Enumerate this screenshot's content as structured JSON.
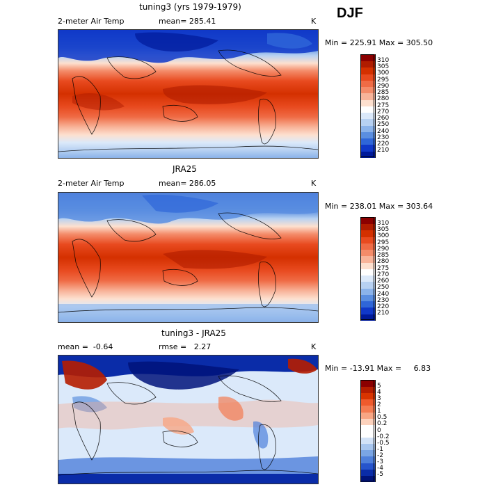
{
  "season": "DJF",
  "panels": [
    {
      "title": "tuning3 (yrs 1979-1979)",
      "variable": "2-meter Air Temp",
      "mean_label": "mean=",
      "mean_value": "285.41",
      "units": "K",
      "range_text": "Min = 225.91 Max = 305.50",
      "colorbar_labels": [
        "310",
        "305",
        "300",
        "295",
        "290",
        "285",
        "280",
        "275",
        "270",
        "260",
        "250",
        "240",
        "230",
        "220",
        "210"
      ]
    },
    {
      "title": "JRA25",
      "variable": "2-meter Air Temp",
      "mean_label": "mean=",
      "mean_value": "286.05",
      "units": "K",
      "range_text": "Min = 238.01 Max = 303.64",
      "colorbar_labels": [
        "310",
        "305",
        "300",
        "295",
        "290",
        "285",
        "280",
        "275",
        "270",
        "260",
        "250",
        "240",
        "230",
        "220",
        "210"
      ]
    },
    {
      "title": "tuning3 - JRA25",
      "mean_label": "mean =",
      "mean_value": "-0.64",
      "rmse_label": "rmse =",
      "rmse_value": "2.27",
      "units": "K",
      "range_text": "Min = -13.91 Max =     6.83",
      "colorbar_labels": [
        "5",
        "4",
        "3",
        "2",
        "1",
        "0.5",
        "0.2",
        "0",
        "-0.2",
        "-0.5",
        "-1",
        "-2",
        "-3",
        "-4",
        "-5"
      ]
    }
  ],
  "colors": {
    "temp_scale": [
      "#8b0000",
      "#b01c00",
      "#d43000",
      "#e84a1f",
      "#ef6b45",
      "#f48c6a",
      "#f8b49a",
      "#fde0cf",
      "#ffffff",
      "#dbe9fa",
      "#b7d1f2",
      "#8bb3ea",
      "#5a8ee0",
      "#2f66d8",
      "#1038c8",
      "#001a9a"
    ],
    "diff_scale": [
      "#8b0000",
      "#b51d00",
      "#d93400",
      "#ef5a2c",
      "#f47c52",
      "#f8a684",
      "#fcd2bd",
      "#ffffff",
      "#ffffff",
      "#d2e2f7",
      "#a8c6ee",
      "#7aa5e4",
      "#4f80db",
      "#2654cc",
      "#0a2ca8",
      "#00137a"
    ]
  }
}
